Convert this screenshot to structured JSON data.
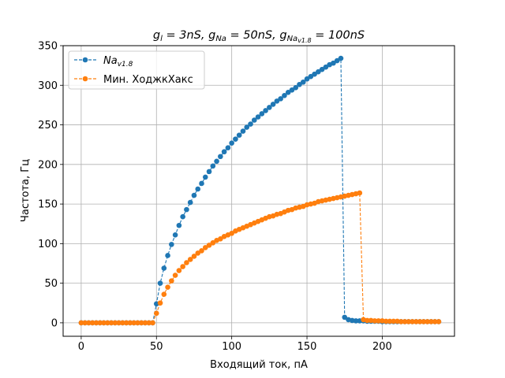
{
  "chart_data": {
    "type": "line",
    "title": "g_l = 3nS, g_Na = 50nS, g_Na_v1.8 = 100nS",
    "title_parts": [
      {
        "text": "g",
        "sub": "l",
        "rest": " = 3nS, "
      },
      {
        "text": "g",
        "sub": "Na",
        "rest": " = 50nS, "
      },
      {
        "text": "g",
        "sub": "Na",
        "subsub": "v1.8",
        "rest": " = 100nS"
      }
    ],
    "xlabel": "Входящий ток, пА",
    "ylabel": "Частота, Гц",
    "xlim": [
      -12,
      248
    ],
    "ylim": [
      -17,
      350
    ],
    "xticks": [
      0,
      50,
      100,
      150,
      200
    ],
    "yticks": [
      0,
      50,
      100,
      150,
      200,
      250,
      300,
      350
    ],
    "grid": true,
    "legend_position": "top-left",
    "series": [
      {
        "name": "Na_v1.8",
        "legend_main": "Na",
        "legend_sub": "v1.8",
        "color": "#1f77b4",
        "linestyle": "dashed",
        "marker": "circle",
        "x": [
          0,
          2.5,
          5,
          7.5,
          10,
          12.5,
          15,
          17.5,
          20,
          22.5,
          25,
          27.5,
          30,
          32.5,
          35,
          37.5,
          40,
          42.5,
          45,
          47.5,
          50,
          52.5,
          55,
          57.5,
          60,
          62.5,
          65,
          67.5,
          70,
          72.5,
          75,
          77.5,
          80,
          82.5,
          85,
          87.5,
          90,
          92.5,
          95,
          97.5,
          100,
          102.5,
          105,
          107.5,
          110,
          112.5,
          115,
          117.5,
          120,
          122.5,
          125,
          127.5,
          130,
          132.5,
          135,
          137.5,
          140,
          142.5,
          145,
          147.5,
          150,
          152.5,
          155,
          157.5,
          160,
          162.5,
          165,
          167.5,
          170,
          172.5,
          175,
          177.5,
          180,
          182.5,
          185,
          187.5,
          190,
          192.5,
          195,
          197.5,
          200,
          202.5,
          205,
          207.5,
          210,
          212.5,
          215,
          217.5,
          220,
          222.5,
          225,
          227.5,
          230,
          232.5,
          235,
          237.5
        ],
        "y": [
          0,
          0,
          0,
          0,
          0,
          0,
          0,
          0,
          0,
          0,
          0,
          0,
          0,
          0,
          0,
          0,
          0,
          0,
          0,
          0,
          24,
          50,
          69,
          85,
          99,
          111,
          123,
          134,
          143,
          152,
          161,
          169,
          176,
          184,
          191,
          198,
          204,
          210,
          216,
          221,
          227,
          232,
          237,
          242,
          247,
          251,
          256,
          260,
          264,
          268,
          272,
          276,
          280,
          283,
          287,
          291,
          294,
          297,
          301,
          304,
          308,
          311,
          314,
          317,
          320,
          323,
          326,
          328,
          331,
          334,
          7,
          4,
          3,
          2.5,
          2.5,
          2.5,
          2,
          2,
          2,
          2,
          1.5,
          1.5,
          1.5,
          1.5,
          1.5,
          1.5,
          1.5,
          1.5,
          1.5,
          1.5,
          1.5,
          1.5,
          1.5,
          1.5,
          1.5,
          1.5
        ]
      },
      {
        "name": "Мин. ХоджкХакс",
        "legend_main": "Мин. ХоджкХакс",
        "color": "#ff7f0e",
        "linestyle": "dashed",
        "marker": "circle",
        "x": [
          0,
          2.5,
          5,
          7.5,
          10,
          12.5,
          15,
          17.5,
          20,
          22.5,
          25,
          27.5,
          30,
          32.5,
          35,
          37.5,
          40,
          42.5,
          45,
          47.5,
          50,
          52.5,
          55,
          57.5,
          60,
          62.5,
          65,
          67.5,
          70,
          72.5,
          75,
          77.5,
          80,
          82.5,
          85,
          87.5,
          90,
          92.5,
          95,
          97.5,
          100,
          102.5,
          105,
          107.5,
          110,
          112.5,
          115,
          117.5,
          120,
          122.5,
          125,
          127.5,
          130,
          132.5,
          135,
          137.5,
          140,
          142.5,
          145,
          147.5,
          150,
          152.5,
          155,
          157.5,
          160,
          162.5,
          165,
          167.5,
          170,
          172.5,
          175,
          177.5,
          180,
          182.5,
          185,
          187.5,
          190,
          192.5,
          195,
          197.5,
          200,
          202.5,
          205,
          207.5,
          210,
          212.5,
          215,
          217.5,
          220,
          222.5,
          225,
          227.5,
          230,
          232.5,
          235,
          237.5
        ],
        "y": [
          0,
          0,
          0,
          0,
          0,
          0,
          0,
          0,
          0,
          0,
          0,
          0,
          0,
          0,
          0,
          0,
          0,
          0,
          0,
          0,
          12,
          25,
          36,
          45,
          53,
          60,
          66,
          71,
          76,
          80,
          84,
          88,
          91,
          95,
          98,
          101,
          104,
          106,
          109,
          111,
          113,
          116,
          118,
          120,
          122,
          124,
          126,
          128,
          130,
          132,
          134,
          135,
          137,
          138,
          140,
          142,
          143,
          145,
          146,
          147,
          149,
          150,
          151,
          153,
          154,
          155,
          156,
          157,
          158,
          159,
          160,
          161,
          162,
          163,
          164,
          4,
          3,
          3,
          2.5,
          2.5,
          2.5,
          2,
          2,
          2,
          2,
          1.5,
          1.5,
          1.5,
          1.5,
          1.5,
          1.5,
          1.5,
          1.5,
          1.5,
          1.5,
          1.5
        ]
      }
    ]
  }
}
